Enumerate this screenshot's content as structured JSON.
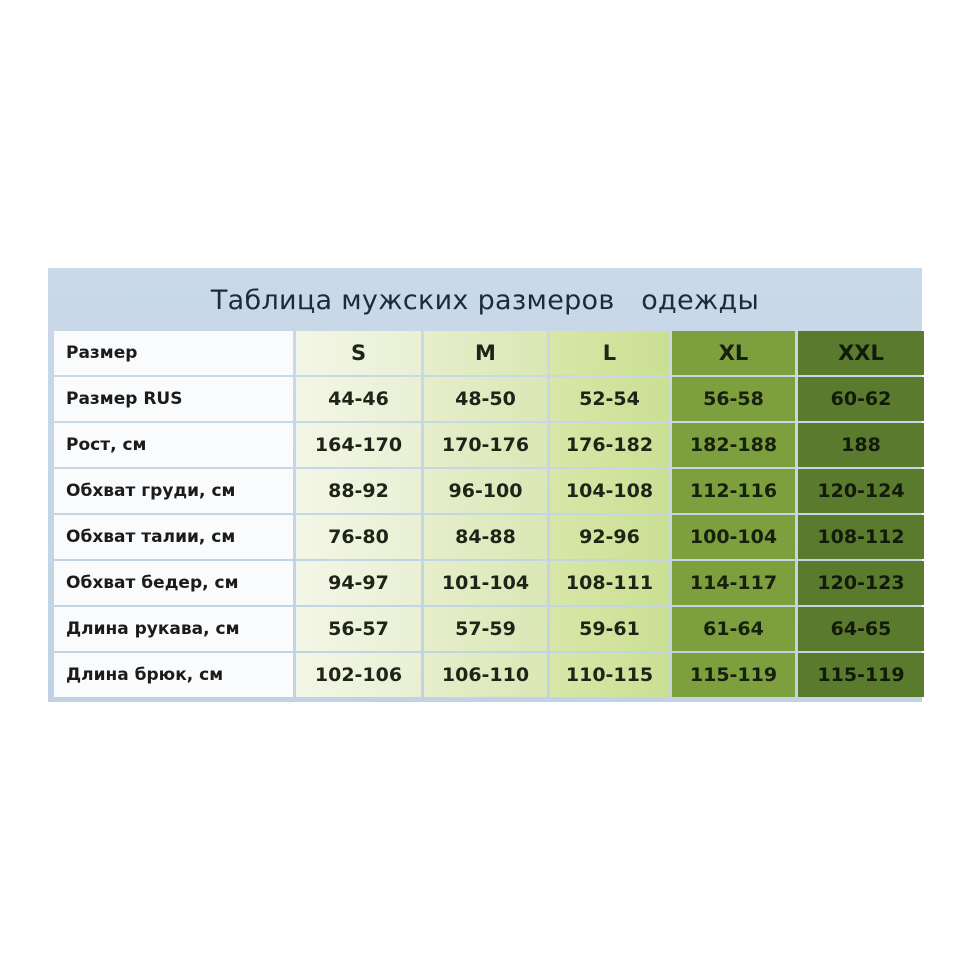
{
  "title": "Таблица мужских размеров   одежды",
  "colors": {
    "background": "#c5d6e6",
    "S": "#eef3dc",
    "M": "#e0eac0",
    "L": "#d0e29d",
    "XL": "#7d9f3e",
    "XXL": "#5a7a2e"
  },
  "table": {
    "header": [
      "Размер",
      "S",
      "M",
      "L",
      "XL",
      "XXL"
    ],
    "rows": [
      [
        "Размер RUS",
        "44-46",
        "48-50",
        "52-54",
        "56-58",
        "60-62"
      ],
      [
        "Рост, см",
        "164-170",
        "170-176",
        "176-182",
        "182-188",
        "188"
      ],
      [
        "Обхват груди, см",
        "88-92",
        "96-100",
        "104-108",
        "112-116",
        "120-124"
      ],
      [
        "Обхват талии, см",
        "76-80",
        "84-88",
        "92-96",
        "100-104",
        "108-112"
      ],
      [
        "Обхват бедер, см",
        "94-97",
        "101-104",
        "108-111",
        "114-117",
        "120-123"
      ],
      [
        "Длина рукава, см",
        "56-57",
        "57-59",
        "59-61",
        "61-64",
        "64-65"
      ],
      [
        "Длина брюк, см",
        "102-106",
        "106-110",
        "110-115",
        "115-119",
        "115-119"
      ]
    ]
  }
}
